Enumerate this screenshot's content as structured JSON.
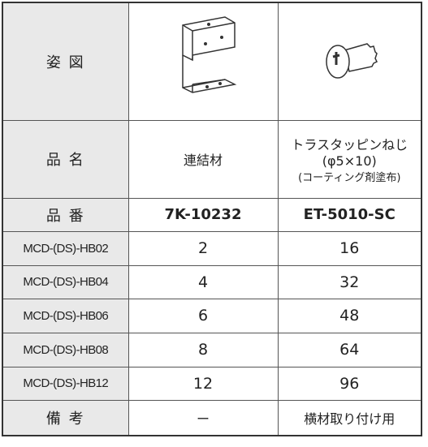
{
  "table": {
    "rows": [
      [
        "姿 図"
      ],
      [
        "品 名",
        "連結材",
        [
          "トラスタッピンねじ",
          "(φ5×10)",
          "(コーティング剤塗布)"
        ]
      ],
      [
        "品 番",
        "7K-10232",
        "ET-5010-SC"
      ],
      [
        "MCD-(DS)-HB02",
        2,
        16
      ],
      [
        "MCD-(DS)-HB04",
        4,
        32
      ],
      [
        "MCD-(DS)-HB06",
        6,
        48
      ],
      [
        "MCD-(DS)-HB08",
        8,
        64
      ],
      [
        "MCD-(DS)-HB12",
        12,
        96
      ],
      [
        "備 考",
        "ー",
        "横材取り付け用"
      ]
    ]
  }
}
